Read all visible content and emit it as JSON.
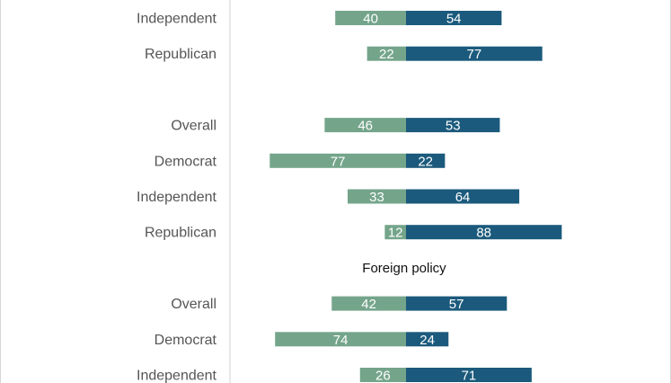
{
  "chart_data": {
    "type": "bar",
    "orientation": "horizontal-diverging",
    "colors": {
      "left": "#74a58b",
      "right": "#1b5a7c",
      "axis": "#d0d0d0"
    },
    "rows": [
      {
        "kind": "bar",
        "label": "Independent",
        "left": 40,
        "right": 54
      },
      {
        "kind": "bar",
        "label": "Republican",
        "left": 22,
        "right": 77
      },
      {
        "kind": "gap"
      },
      {
        "kind": "bar",
        "label": "Overall",
        "left": 46,
        "right": 53
      },
      {
        "kind": "bar",
        "label": "Democrat",
        "left": 77,
        "right": 22
      },
      {
        "kind": "bar",
        "label": "Independent",
        "left": 33,
        "right": 64
      },
      {
        "kind": "bar",
        "label": "Republican",
        "left": 12,
        "right": 88
      },
      {
        "kind": "title",
        "label": "Foreign policy"
      },
      {
        "kind": "bar",
        "label": "Overall",
        "left": 42,
        "right": 57
      },
      {
        "kind": "bar",
        "label": "Democrat",
        "left": 74,
        "right": 24
      },
      {
        "kind": "bar",
        "label": "Independent",
        "left": 26,
        "right": 71
      }
    ]
  }
}
